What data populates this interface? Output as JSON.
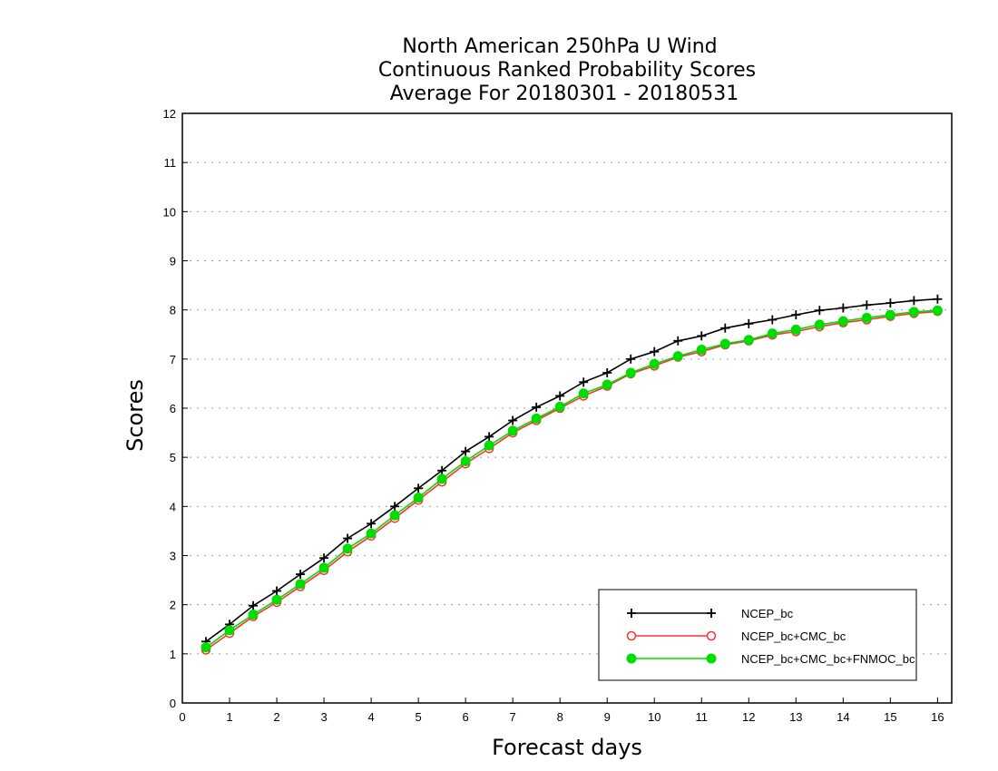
{
  "chart_data": {
    "type": "line",
    "title": [
      "North American 250hPa U Wind",
      "Continuous Ranked Probability Scores",
      "Average For 20180301 - 20180531"
    ],
    "xlabel": "Forecast days",
    "ylabel": "Scores",
    "xlim": [
      0,
      16.3
    ],
    "ylim": [
      0,
      12
    ],
    "xticks": [
      "0",
      "1",
      "2",
      "3",
      "4",
      "5",
      "6",
      "7",
      "8",
      "9",
      "10",
      "11",
      "12",
      "13",
      "14",
      "15",
      "16"
    ],
    "yticks": [
      "0",
      "1",
      "2",
      "3",
      "4",
      "5",
      "6",
      "7",
      "8",
      "9",
      "10",
      "11",
      "12"
    ],
    "grid": "horizontal dotted",
    "legend_position": "bottom-right",
    "x": [
      0.5,
      1,
      1.5,
      2,
      2.5,
      3,
      3.5,
      4,
      4.5,
      5,
      5.5,
      6,
      6.5,
      7,
      7.5,
      8,
      8.5,
      9,
      9.5,
      10,
      10.5,
      11,
      11.5,
      12,
      12.5,
      13,
      13.5,
      14,
      14.5,
      15,
      15.5,
      16
    ],
    "series": [
      {
        "name": "NCEP_bc",
        "color": "#000000",
        "marker": "plus",
        "values": [
          1.25,
          1.6,
          1.98,
          2.28,
          2.62,
          2.95,
          3.35,
          3.65,
          4.0,
          4.37,
          4.73,
          5.12,
          5.42,
          5.75,
          6.02,
          6.25,
          6.53,
          6.72,
          7.0,
          7.15,
          7.37,
          7.47,
          7.63,
          7.72,
          7.8,
          7.9,
          7.99,
          8.04,
          8.1,
          8.14,
          8.19,
          8.22
        ]
      },
      {
        "name": "NCEP_bc+CMC_bc",
        "color": "#ff3030",
        "marker": "open-circle",
        "values": [
          1.08,
          1.42,
          1.76,
          2.05,
          2.37,
          2.7,
          3.08,
          3.4,
          3.76,
          4.13,
          4.5,
          4.87,
          5.18,
          5.5,
          5.75,
          6.0,
          6.25,
          6.45,
          6.7,
          6.86,
          7.04,
          7.15,
          7.29,
          7.37,
          7.49,
          7.56,
          7.66,
          7.74,
          7.8,
          7.87,
          7.93,
          7.97
        ]
      },
      {
        "name": "NCEP_bc+CMC_bc+FNMOC_bc",
        "color": "#00dd00",
        "marker": "filled-circle",
        "values": [
          1.13,
          1.48,
          1.8,
          2.1,
          2.42,
          2.75,
          3.14,
          3.45,
          3.82,
          4.18,
          4.56,
          4.92,
          5.24,
          5.54,
          5.79,
          6.03,
          6.3,
          6.48,
          6.72,
          6.9,
          7.06,
          7.19,
          7.31,
          7.39,
          7.52,
          7.6,
          7.7,
          7.77,
          7.84,
          7.9,
          7.96,
          7.99
        ]
      }
    ]
  }
}
